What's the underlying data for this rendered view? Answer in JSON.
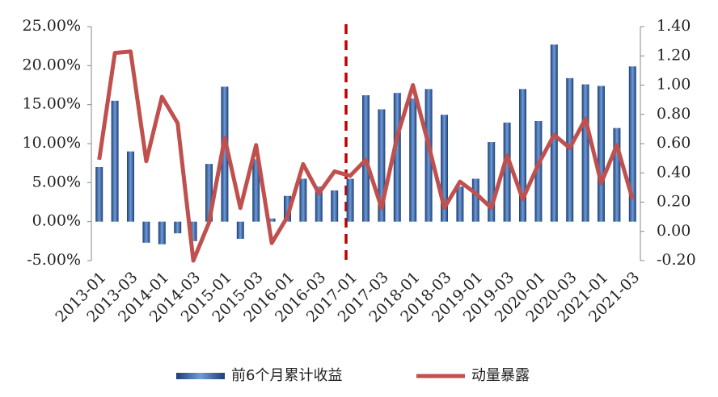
{
  "chart_data": {
    "type": "bar_line",
    "categories": [
      "2013-01",
      null,
      "2013-03",
      null,
      "2014-01",
      null,
      "2014-03",
      null,
      "2015-01",
      null,
      "2015-03",
      null,
      "2016-01",
      null,
      "2016-03",
      null,
      "2017-01",
      null,
      "2017-03",
      null,
      "2018-01",
      null,
      "2018-03",
      null,
      "2019-01",
      null,
      "2019-03",
      null,
      "2020-01",
      null,
      "2020-03",
      null,
      "2021-01",
      null,
      "2021-03"
    ],
    "series": [
      {
        "name": "前6个月累计收益",
        "type": "bar",
        "color": "#2f62a8",
        "axis": "y",
        "values": [
          7.0,
          15.5,
          9.0,
          -2.7,
          -2.9,
          -1.5,
          -2.5,
          7.4,
          17.3,
          -2.2,
          8.0,
          0.4,
          3.3,
          5.5,
          4.5,
          4.0,
          5.5,
          16.2,
          14.4,
          16.5,
          15.8,
          17.0,
          13.7,
          4.5,
          5.5,
          10.2,
          12.7,
          17.0,
          12.9,
          22.7,
          18.4,
          17.6,
          17.4,
          12.0,
          19.9
        ]
      },
      {
        "name": "动量暴露",
        "type": "line",
        "color": "#c0504d",
        "axis": "y2",
        "values": [
          0.49,
          1.22,
          1.23,
          0.48,
          0.92,
          0.74,
          -0.2,
          0.06,
          0.64,
          0.16,
          0.59,
          -0.08,
          0.1,
          0.46,
          0.26,
          0.41,
          0.38,
          0.49,
          0.16,
          0.65,
          1.0,
          0.59,
          0.16,
          0.34,
          0.26,
          0.16,
          0.52,
          0.22,
          0.46,
          0.66,
          0.57,
          0.77,
          0.33,
          0.59,
          0.22
        ]
      }
    ],
    "ylim": [
      -5,
      25
    ],
    "yticks": [
      {
        "value": -5,
        "label": "-5.00%"
      },
      {
        "value": 0,
        "label": "0.00%"
      },
      {
        "value": 5,
        "label": "5.00%"
      },
      {
        "value": 10,
        "label": "10.00%"
      },
      {
        "value": 15,
        "label": "15.00%"
      },
      {
        "value": 20,
        "label": "20.00%"
      },
      {
        "value": 25,
        "label": "25.00%"
      }
    ],
    "y2lim": [
      -0.2,
      1.4
    ],
    "y2ticks": [
      {
        "value": -0.2,
        "label": "-0.20"
      },
      {
        "value": 0,
        "label": "0.00"
      },
      {
        "value": 0.2,
        "label": "0.20"
      },
      {
        "value": 0.4,
        "label": "0.40"
      },
      {
        "value": 0.6,
        "label": "0.60"
      },
      {
        "value": 0.8,
        "label": "0.80"
      },
      {
        "value": 1.0,
        "label": "1.00"
      },
      {
        "value": 1.2,
        "label": "1.20"
      },
      {
        "value": 1.4,
        "label": "1.40"
      }
    ],
    "legend": "bottom"
  }
}
